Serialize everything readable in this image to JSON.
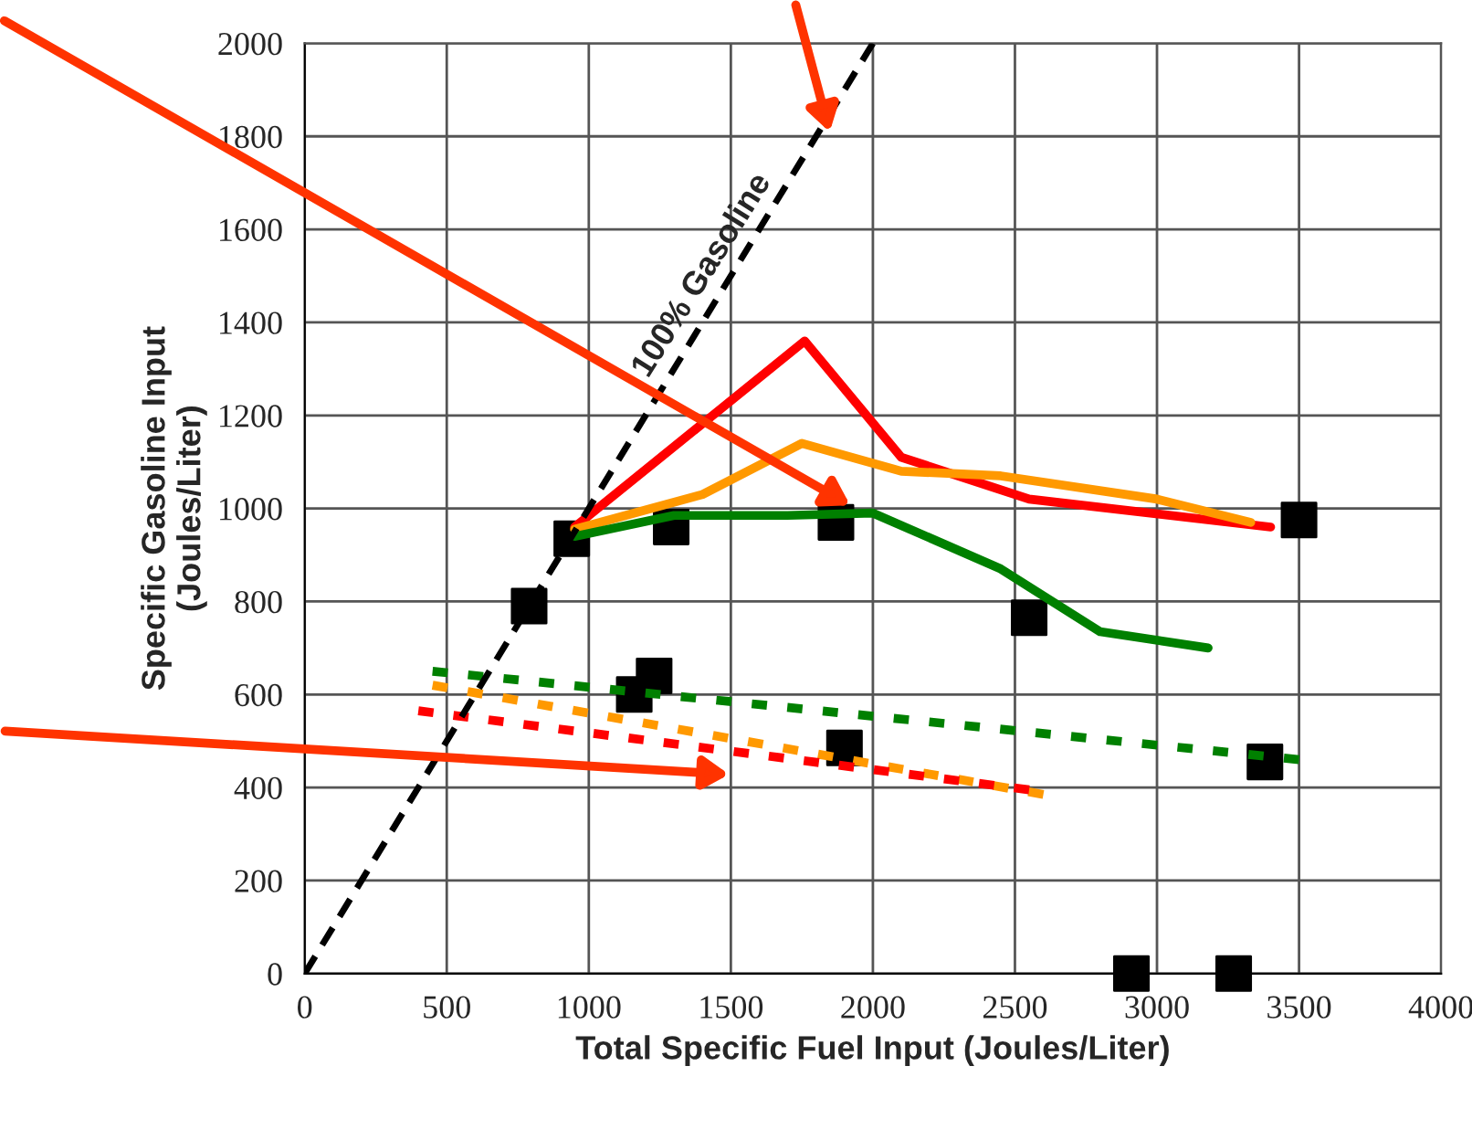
{
  "chart_data": {
    "type": "line",
    "xlabel": "Total Specific Fuel Input (Joules/Liter)",
    "ylabel": "Specific Gasoline Input\n(Joules/Liter)",
    "xlim": [
      0,
      4000
    ],
    "xticks": [
      0,
      500,
      1000,
      1500,
      2000,
      2500,
      3000,
      3500,
      4000
    ],
    "ylim": [
      0,
      2000
    ],
    "yticks": [
      0,
      200,
      400,
      600,
      800,
      1000,
      1200,
      1400,
      1600,
      1800,
      2000
    ],
    "grid": true,
    "legend": false,
    "series": [
      {
        "color": "#ff0000",
        "line_style": "solid",
        "x": [
          950,
          1760,
          2100,
          2550,
          3400
        ],
        "values": [
          960,
          1360,
          1110,
          1020,
          960
        ]
      },
      {
        "color": "#ff9900",
        "line_style": "solid",
        "x": [
          950,
          1400,
          1750,
          2100,
          2450,
          3000,
          3330
        ],
        "values": [
          955,
          1030,
          1140,
          1080,
          1070,
          1020,
          970
        ]
      },
      {
        "color": "#008000",
        "line_style": "solid",
        "x": [
          950,
          1300,
          1700,
          2000,
          2450,
          2800,
          3180
        ],
        "values": [
          940,
          985,
          985,
          990,
          870,
          735,
          700
        ]
      },
      {
        "color": "#008000",
        "line_style": "dashed",
        "x": [
          450,
          3500
        ],
        "values": [
          650,
          460
        ]
      },
      {
        "color": "#ff9900",
        "line_style": "dashed",
        "x": [
          450,
          2600
        ],
        "values": [
          620,
          385
        ]
      },
      {
        "color": "#ff0000",
        "line_style": "dashed",
        "x": [
          400,
          2550
        ],
        "values": [
          565,
          395
        ]
      },
      {
        "color": "#000000",
        "line_style": "dashed",
        "x": [
          0,
          2000
        ],
        "values": [
          0,
          2000
        ]
      },
      {
        "type": "scatter",
        "color": "#000000",
        "marker": "square",
        "x": [
          790,
          940,
          1290,
          1870,
          2550,
          3500,
          1160,
          1230,
          1900,
          3380,
          2910,
          3270
        ],
        "values": [
          790,
          935,
          960,
          970,
          765,
          975,
          600,
          640,
          485,
          455,
          0,
          0
        ]
      }
    ],
    "annotations": [
      "100% Gasoline"
    ]
  }
}
